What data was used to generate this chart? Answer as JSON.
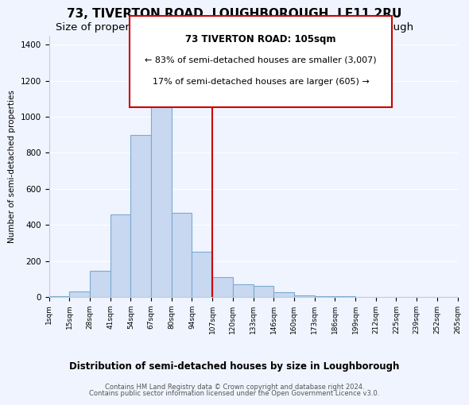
{
  "title": "73, TIVERTON ROAD, LOUGHBOROUGH, LE11 2RU",
  "subtitle": "Size of property relative to semi-detached houses in Loughborough",
  "xlabel": "Distribution of semi-detached houses by size in Loughborough",
  "ylabel": "Number of semi-detached properties",
  "bin_labels": [
    "1sqm",
    "15sqm",
    "28sqm",
    "41sqm",
    "54sqm",
    "67sqm",
    "80sqm",
    "94sqm",
    "107sqm",
    "120sqm",
    "133sqm",
    "146sqm",
    "160sqm",
    "173sqm",
    "186sqm",
    "199sqm",
    "212sqm",
    "225sqm",
    "239sqm",
    "252sqm",
    "265sqm"
  ],
  "bar_heights": [
    5,
    30,
    145,
    460,
    900,
    1100,
    465,
    250,
    110,
    70,
    60,
    25,
    10,
    5,
    2,
    1,
    1,
    1,
    1,
    1
  ],
  "bar_color": "#c8d8f0",
  "bar_edge_color": "#7aaad0",
  "vline_x": 8,
  "vline_color": "#cc0000",
  "annotation_title": "73 TIVERTON ROAD: 105sqm",
  "annotation_line1": "← 83% of semi-detached houses are smaller (3,007)",
  "annotation_line2": "17% of semi-detached houses are larger (605) →",
  "annotation_box_color": "#cc0000",
  "annotation_text_color": "#000000",
  "ylim": [
    0,
    1450
  ],
  "footer1": "Contains HM Land Registry data © Crown copyright and database right 2024.",
  "footer2": "Contains public sector information licensed under the Open Government Licence v3.0.",
  "background_color": "#f0f4ff",
  "plot_background": "#f0f4ff",
  "title_fontsize": 11,
  "subtitle_fontsize": 9.5
}
